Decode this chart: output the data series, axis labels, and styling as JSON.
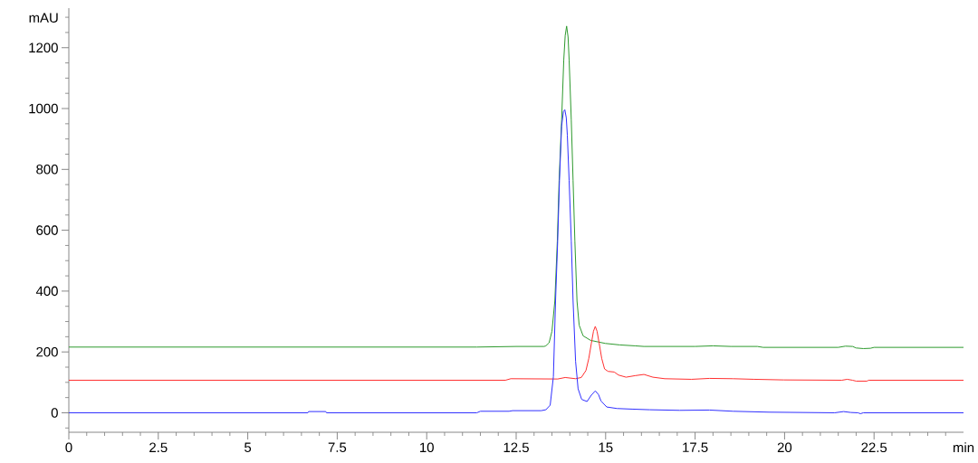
{
  "chart_data": {
    "type": "line",
    "xlabel": "min",
    "ylabel": "mAU",
    "xlim": [
      0,
      25
    ],
    "ylim": [
      -64,
      1330
    ],
    "marker": "none",
    "line_style": "solid",
    "xticks": [
      0,
      {
        "value": 0.5,
        "label": null
      },
      {
        "value": 1,
        "label": null
      },
      {
        "value": 1.5,
        "label": null
      },
      {
        "value": 2,
        "label": null
      },
      2.5,
      {
        "value": 3,
        "label": null
      },
      {
        "value": 3.5,
        "label": null
      },
      {
        "value": 4,
        "label": null
      },
      {
        "value": 4.5,
        "label": null
      },
      5,
      {
        "value": 5.5,
        "label": null
      },
      {
        "value": 6,
        "label": null
      },
      {
        "value": 6.5,
        "label": null
      },
      {
        "value": 7,
        "label": null
      },
      7.5,
      {
        "value": 8,
        "label": null
      },
      {
        "value": 8.5,
        "label": null
      },
      {
        "value": 9,
        "label": null
      },
      {
        "value": 9.5,
        "label": null
      },
      10,
      {
        "value": 10.5,
        "label": null
      },
      {
        "value": 11,
        "label": null
      },
      {
        "value": 11.5,
        "label": null
      },
      {
        "value": 12,
        "label": null
      },
      12.5,
      {
        "value": 13,
        "label": null
      },
      {
        "value": 13.5,
        "label": null
      },
      {
        "value": 14,
        "label": null
      },
      {
        "value": 14.5,
        "label": null
      },
      15,
      {
        "value": 15.5,
        "label": null
      },
      {
        "value": 16,
        "label": null
      },
      {
        "value": 16.5,
        "label": null
      },
      {
        "value": 17,
        "label": null
      },
      17.5,
      {
        "value": 18,
        "label": null
      },
      {
        "value": 18.5,
        "label": null
      },
      {
        "value": 19,
        "label": null
      },
      {
        "value": 19.5,
        "label": null
      },
      20,
      {
        "value": 20.5,
        "label": null
      },
      {
        "value": 21,
        "label": null
      },
      {
        "value": 21.5,
        "label": null
      },
      {
        "value": 22,
        "label": null
      },
      22.5,
      {
        "value": 23,
        "label": null
      },
      {
        "value": 23.5,
        "label": null
      },
      {
        "value": 24,
        "label": null
      },
      {
        "value": 24.5,
        "label": null
      }
    ],
    "yticks": [
      {
        "value": -50,
        "label": null
      },
      0,
      {
        "value": 50,
        "label": null
      },
      {
        "value": 100,
        "label": null
      },
      {
        "value": 150,
        "label": null
      },
      200,
      {
        "value": 250,
        "label": null
      },
      {
        "value": 300,
        "label": null
      },
      {
        "value": 350,
        "label": null
      },
      400,
      {
        "value": 450,
        "label": null
      },
      {
        "value": 500,
        "label": null
      },
      {
        "value": 550,
        "label": null
      },
      600,
      {
        "value": 650,
        "label": null
      },
      {
        "value": 700,
        "label": null
      },
      {
        "value": 750,
        "label": null
      },
      800,
      {
        "value": 850,
        "label": null
      },
      {
        "value": 900,
        "label": null
      },
      {
        "value": 950,
        "label": null
      },
      1000,
      {
        "value": 1050,
        "label": null
      },
      {
        "value": 1100,
        "label": null
      },
      {
        "value": 1150,
        "label": null
      },
      1200,
      {
        "value": 1250,
        "label": null
      },
      {
        "value": 1300,
        "label": null
      }
    ],
    "series": [
      {
        "color": "#2e9a2e",
        "x": [
          0,
          11.4,
          12.5,
          13.28,
          13.33,
          13.42,
          13.5,
          13.58,
          13.65,
          13.7,
          13.77,
          13.83,
          13.87,
          13.91,
          13.95,
          13.98,
          14.04,
          14.09,
          14.14,
          14.2,
          14.26,
          14.37,
          14.58,
          14.99,
          15.4,
          15.82,
          16.07,
          17.5,
          18.0,
          18.5,
          19.24,
          19.4,
          21.5,
          21.7,
          21.9,
          22.0,
          22.2,
          22.4,
          22.5,
          25
        ],
        "values": [
          216,
          216,
          218,
          218,
          220,
          230,
          268,
          367,
          565,
          763,
          962,
          1160,
          1240,
          1271,
          1235,
          1160,
          962,
          763,
          565,
          367,
          288,
          253,
          238,
          228,
          223,
          220,
          218,
          218,
          220,
          218,
          218,
          215,
          215,
          219,
          218,
          213,
          211,
          212,
          215,
          215
        ]
      },
      {
        "color": "#ff3030",
        "x": [
          0,
          12.2,
          12.35,
          13.66,
          13.87,
          14.16,
          14.32,
          14.45,
          14.53,
          14.6,
          14.66,
          14.71,
          14.76,
          14.82,
          14.89,
          14.97,
          15.07,
          15.24,
          15.36,
          15.57,
          15.82,
          16.07,
          16.32,
          16.65,
          17.4,
          17.9,
          18.56,
          19.15,
          19.98,
          21.6,
          21.75,
          21.9,
          22.0,
          22.3,
          22.35,
          25
        ],
        "values": [
          107,
          107,
          112,
          111,
          116,
          112,
          116,
          139,
          179,
          228,
          268,
          284,
          268,
          228,
          179,
          144,
          136,
          134,
          124,
          117,
          122,
          126,
          117,
          112,
          110,
          113,
          112,
          110,
          108,
          107,
          110,
          107,
          104,
          104,
          107,
          107
        ]
      },
      {
        "color": "#3030ff",
        "x": [
          0,
          6.68,
          6.7,
          7.18,
          7.2,
          11.4,
          11.5,
          12.3,
          12.4,
          13.2,
          13.33,
          13.45,
          13.54,
          13.6,
          13.66,
          13.71,
          13.77,
          13.82,
          13.86,
          13.9,
          13.93,
          13.98,
          14.04,
          14.09,
          14.16,
          14.23,
          14.33,
          14.48,
          14.6,
          14.71,
          14.8,
          14.87,
          15.03,
          15.32,
          15.74,
          16.23,
          17.07,
          17.9,
          18.56,
          19.56,
          21.4,
          21.65,
          21.85,
          22.05,
          22.12,
          22.2,
          25
        ],
        "values": [
          0,
          0,
          4,
          4,
          0,
          0,
          5,
          5,
          7,
          7,
          10,
          25,
          119,
          367,
          565,
          763,
          942,
          990,
          996,
          970,
          912,
          763,
          565,
          367,
          169,
          79,
          44,
          37,
          58,
          72,
          60,
          39,
          19,
          14,
          12,
          10,
          8,
          9,
          5,
          2,
          0,
          4,
          1,
          0,
          -3,
          0,
          0
        ]
      }
    ]
  }
}
